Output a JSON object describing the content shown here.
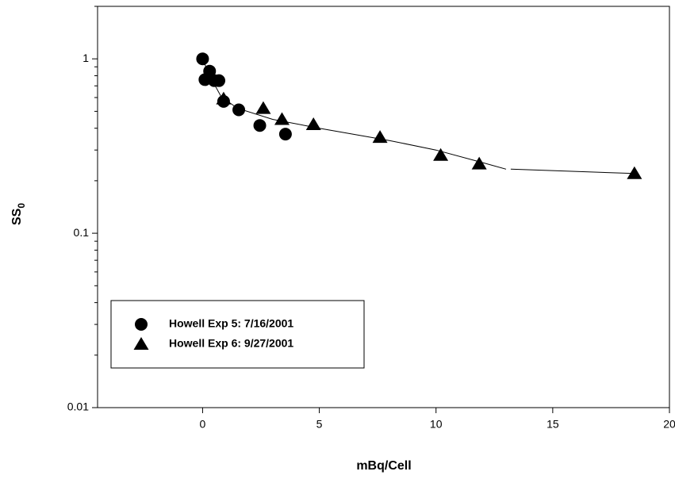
{
  "chart_data": {
    "type": "scatter",
    "xlabel": "mBq/Cell",
    "ylabel": "SS",
    "ylabel_subscript": "0",
    "xlim": [
      -4.5,
      20
    ],
    "ylim": [
      0.01,
      2
    ],
    "ylog": true,
    "xticks": [
      0,
      5,
      10,
      15,
      20
    ],
    "yticks": [
      0.01,
      0.1,
      1
    ],
    "yminorticks": [
      0.02,
      0.03,
      0.04,
      0.05,
      0.06,
      0.07,
      0.08,
      0.09,
      0.2,
      0.3,
      0.4,
      0.5,
      0.6,
      0.7,
      0.8,
      0.9,
      2
    ],
    "series": [
      {
        "name": "Howell Exp 5: 7/16/2001",
        "marker": "circle",
        "color": "#000000",
        "x": [
          0,
          0.1,
          0.3,
          0.5,
          0.7,
          0.9,
          1.55,
          2.45,
          3.55
        ],
        "values": [
          1.0,
          0.76,
          0.85,
          0.75,
          0.75,
          0.57,
          0.51,
          0.415,
          0.37
        ]
      },
      {
        "name": "Howell Exp 6: 9/27/2001",
        "marker": "triangle",
        "color": "#000000",
        "x": [
          0.9,
          2.6,
          3.4,
          4.75,
          7.6,
          10.2,
          11.85,
          18.5
        ],
        "values": [
          0.59,
          0.52,
          0.45,
          0.42,
          0.355,
          0.28,
          0.25,
          0.22
        ]
      }
    ],
    "curve": {
      "x": [
        0,
        0.3,
        0.8,
        1.5,
        3,
        5,
        8,
        10,
        12,
        13,
        13.1,
        13.2,
        18.5
      ],
      "values": [
        1.0,
        0.8,
        0.605,
        0.52,
        0.45,
        0.4,
        0.34,
        0.3,
        0.254,
        0.233,
        null,
        0.233,
        0.22
      ],
      "color": "#000000"
    }
  }
}
